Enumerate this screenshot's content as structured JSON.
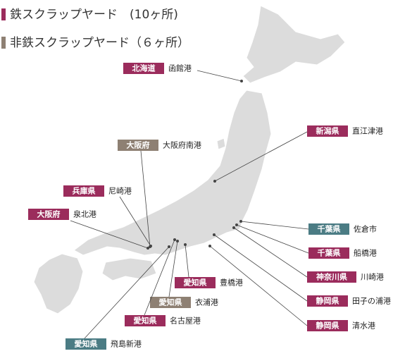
{
  "legend": [
    {
      "label": "鉄スクラップヤード　(10ヶ所)",
      "color": "#9b2c5c"
    },
    {
      "label": "非鉄スクラップヤード（６ヶ所）",
      "color": "#8e8073"
    }
  ],
  "labels": [
    {
      "prefecture": "北海道",
      "port": "函館港",
      "color": "#9b2c5c"
    },
    {
      "prefecture": "新潟県",
      "port": "直江津港",
      "color": "#9b2c5c"
    },
    {
      "prefecture": "大阪府",
      "port": "大阪府南港",
      "color": "#8e8073"
    },
    {
      "prefecture": "兵庫県",
      "port": "尼崎港",
      "color": "#9b2c5c"
    },
    {
      "prefecture": "大阪府",
      "port": "泉北港",
      "color": "#9b2c5c"
    },
    {
      "prefecture": "千葉県",
      "port": "佐倉市",
      "color": "#4b7c84"
    },
    {
      "prefecture": "千葉県",
      "port": "船橋港",
      "color": "#9b2c5c"
    },
    {
      "prefecture": "神奈川県",
      "port": "川崎港",
      "color": "#9b2c5c"
    },
    {
      "prefecture": "静岡県",
      "port": "田子の浦港",
      "color": "#9b2c5c"
    },
    {
      "prefecture": "静岡県",
      "port": "清水港",
      "color": "#9b2c5c"
    },
    {
      "prefecture": "愛知県",
      "port": "豊橋港",
      "color": "#9b2c5c"
    },
    {
      "prefecture": "愛知県",
      "port": "衣浦港",
      "color": "#8e8073"
    },
    {
      "prefecture": "愛知県",
      "port": "名古屋港",
      "color": "#9b2c5c"
    },
    {
      "prefecture": "愛知県",
      "port": "飛島新港",
      "color": "#4b7c84"
    }
  ]
}
